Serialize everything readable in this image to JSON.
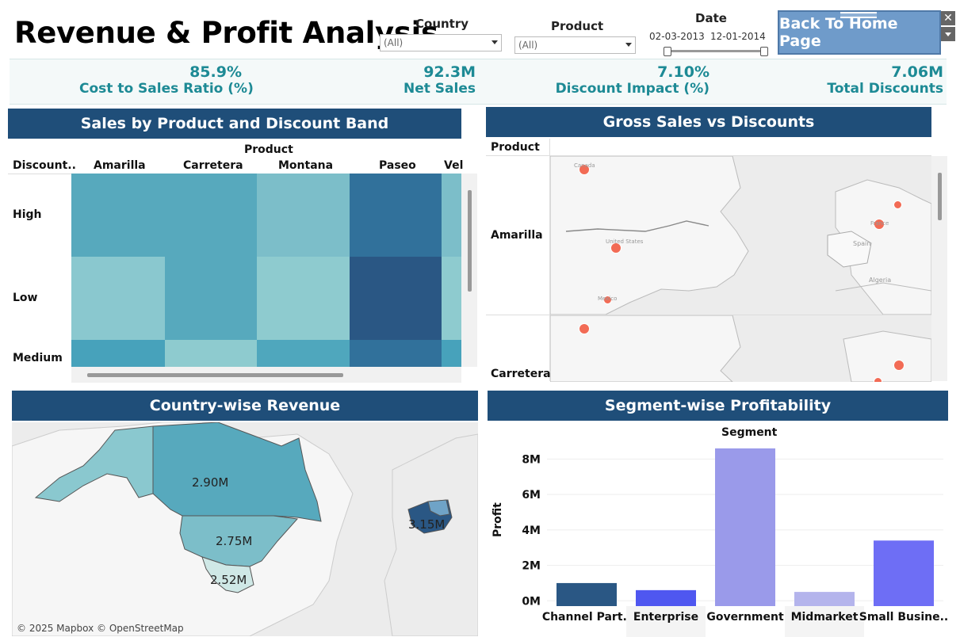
{
  "header": {
    "title": "Revenue & Profit Analysis",
    "filters": {
      "country": {
        "label": "Country",
        "value": "(All)"
      },
      "product": {
        "label": "Product",
        "value": "(All)"
      },
      "date": {
        "label": "Date",
        "start": "02-03-2013",
        "end": "12-01-2014"
      }
    },
    "home_button": "Back To Home Page",
    "close_glyph": "✕"
  },
  "kpis": [
    {
      "value": "85.9%",
      "label": "Cost to Sales Ratio (%)"
    },
    {
      "value": "92.3M",
      "label": "Net Sales"
    },
    {
      "value": "7.10%",
      "label": "Discount Impact (%)"
    },
    {
      "value": "7.06M",
      "label": "Total Discounts"
    }
  ],
  "heatmap": {
    "title": "Sales by Product and Discount Band",
    "column_group": "Product",
    "row_header": "Discount..",
    "columns": [
      "Amarilla",
      "Carretera",
      "Montana",
      "Paseo",
      "Vel"
    ],
    "rows": [
      "High",
      "Low",
      "Medium"
    ],
    "colors": [
      [
        "#57a9bd",
        "#57a9bd",
        "#7cbec9",
        "#31719b",
        "#7cbec9"
      ],
      [
        "#8ac8cf",
        "#57a9bd",
        "#8ecbcf",
        "#2a5784",
        "#8ecbcf"
      ],
      [
        "#47a2bb",
        "#8ecbcf",
        "#4fa7bd",
        "#31719b",
        "#47a2bb"
      ]
    ]
  },
  "gross_map": {
    "title": "Gross Sales vs Discounts",
    "row_header": "Product",
    "rows": [
      "Amarilla",
      "Carretera"
    ],
    "place_labels": [
      "Canada",
      "United States",
      "Mexico",
      "France",
      "Spain",
      "Algeria"
    ]
  },
  "country_map": {
    "title": "Country-wise Revenue",
    "labels": [
      "2.90M",
      "2.75M",
      "2.52M",
      "3.15M"
    ],
    "credit": "© 2025 Mapbox © OpenStreetMap"
  },
  "chart_data": {
    "type": "bar",
    "title": "Segment-wise Profitability",
    "column_header": "Segment",
    "ylabel": "Profit",
    "categories": [
      "Channel Part..",
      "Enterprise",
      "Government",
      "Midmarket",
      "Small Busine.."
    ],
    "values": [
      1.0,
      0.6,
      8.6,
      0.5,
      3.4
    ],
    "colors": [
      "#2a5784",
      "#4f57f0",
      "#9a9aea",
      "#b4b4ec",
      "#6e6ef5"
    ],
    "yticks": [
      "0M",
      "2M",
      "4M",
      "6M",
      "8M"
    ],
    "ylim": [
      -0.3,
      9.0
    ]
  }
}
